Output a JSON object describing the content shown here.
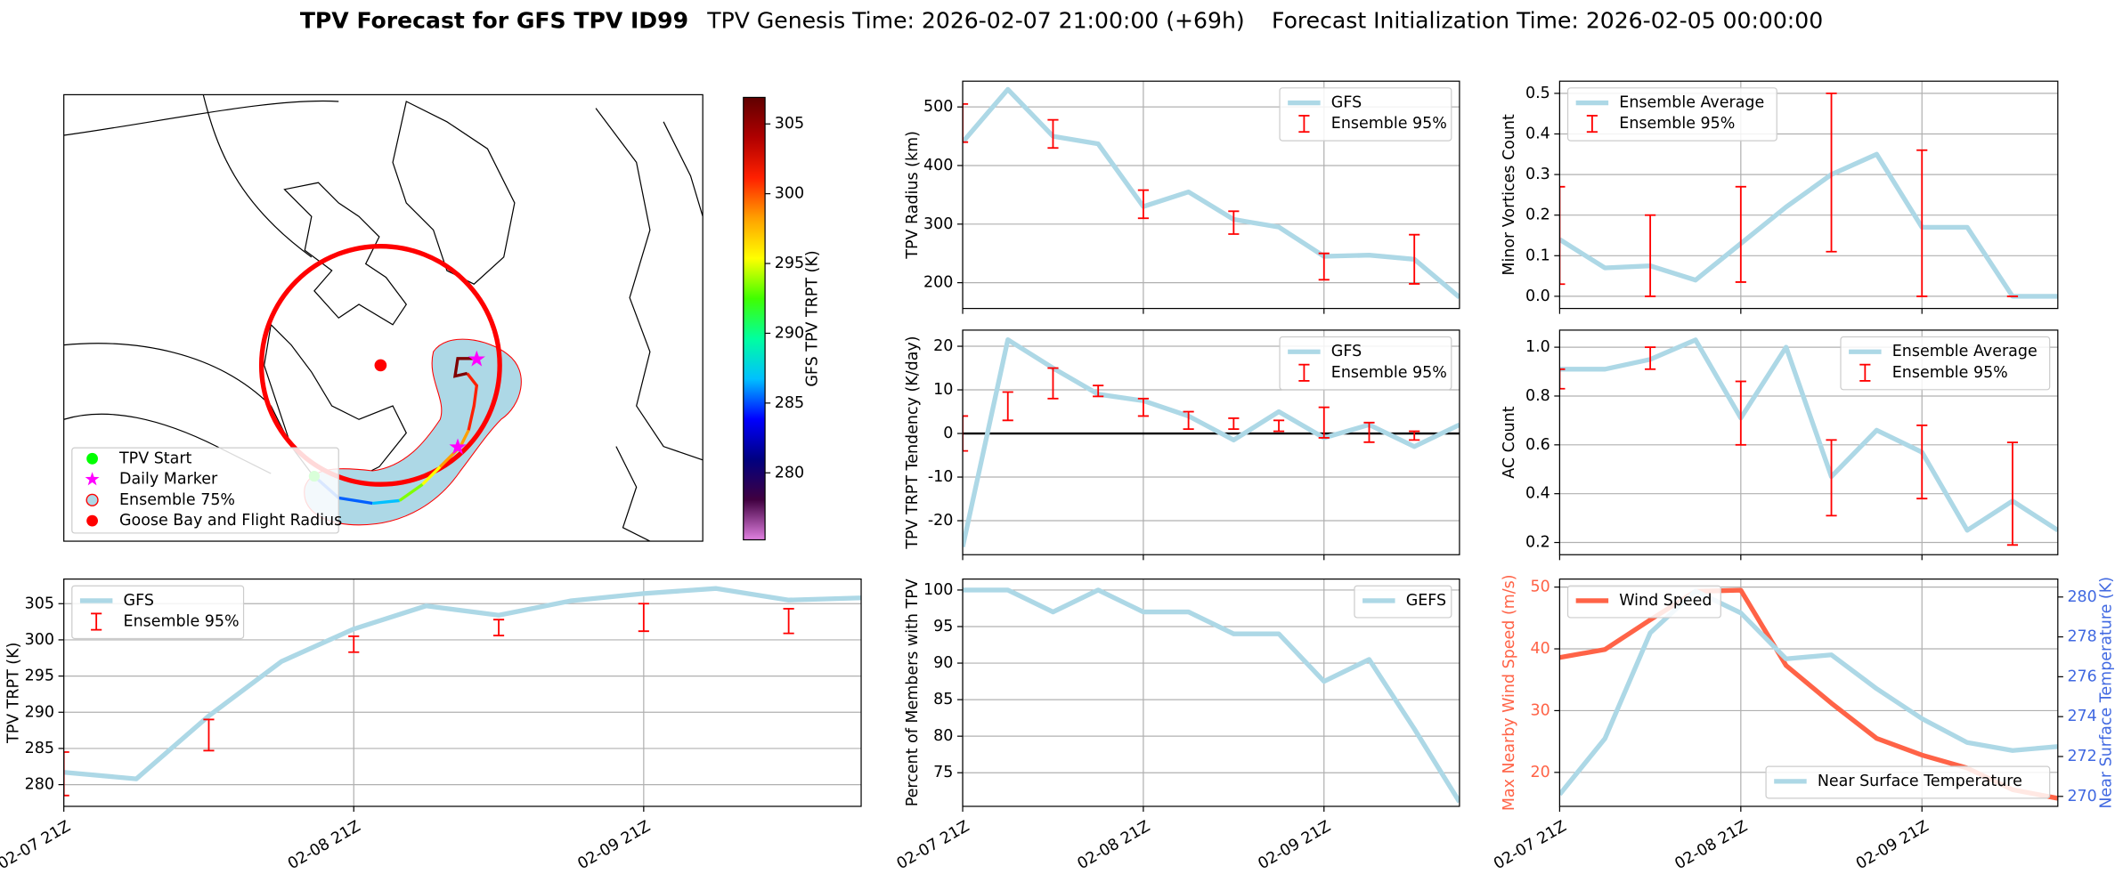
{
  "suptitle": {
    "main": "TPV Forecast for GFS TPV ID99",
    "genesis": "TPV Genesis Time: 2026-02-07 21:00:00 (+69h)",
    "init": "Forecast Initialization Time: 2026-02-05 00:00:00"
  },
  "chart_data": [
    {
      "type": "map",
      "colorbar": {
        "label": "GFS TPV TRPT (K)",
        "clim": [
          275.2,
          306.9
        ],
        "ticks": [
          280,
          285,
          290,
          295,
          300,
          305
        ],
        "colormap": [
          "#e080e0",
          "#400040",
          "#000080",
          "#0000ff",
          "#00c0ff",
          "#00ffa0",
          "#40ff00",
          "#ffff00",
          "#ffa000",
          "#ff2000",
          "#b00000",
          "#600000"
        ]
      },
      "legend": [
        {
          "label": "TPV Start",
          "color": "#00ff00",
          "marker": "circle"
        },
        {
          "label": "Daily Marker",
          "color": "#ff00ff",
          "marker": "star"
        },
        {
          "label": "Ensemble 75%",
          "color": "#add8e6",
          "edge": "#ff0000",
          "marker": "circle"
        },
        {
          "label": "Goose Bay and Flight Radius",
          "color": "#ff0000",
          "marker": "circle"
        }
      ]
    },
    {
      "type": "line",
      "ylabel": "TPV Radius (km)",
      "xlim": [
        0,
        66
      ],
      "xticks": [
        0,
        24,
        48
      ],
      "ylim": [
        156,
        544
      ],
      "yticks": [
        200,
        300,
        400,
        500
      ],
      "grid": true,
      "legend": "upper right",
      "x": [
        0,
        6,
        12,
        18,
        24,
        30,
        36,
        42,
        48,
        54,
        60,
        66
      ],
      "series": [
        {
          "name": "GFS",
          "color": "#add8e6",
          "values": [
            440,
            530,
            450,
            437,
            330,
            355,
            308,
            295,
            245,
            247,
            240,
            175
          ]
        },
        {
          "name": "Ensemble 95%",
          "type": "errorbar",
          "color": "#ff0000",
          "x": [
            0,
            12,
            24,
            36,
            48,
            60
          ],
          "low": [
            440,
            430,
            310,
            283,
            205,
            198
          ],
          "high": [
            505,
            478,
            358,
            322,
            250,
            282
          ]
        }
      ]
    },
    {
      "type": "line",
      "ylabel": "TPV TRPT Tendency (K/day)",
      "xlim": [
        0,
        66
      ],
      "xticks": [
        0,
        24,
        48
      ],
      "ylim": [
        -27.8,
        23.7
      ],
      "yticks": [
        -20,
        -10,
        0,
        10,
        20
      ],
      "grid": true,
      "legend": "upper right",
      "hline": {
        "value": 0,
        "color": "#000000"
      },
      "x": [
        0,
        6,
        12,
        18,
        24,
        30,
        36,
        42,
        48,
        54,
        60,
        66
      ],
      "series": [
        {
          "name": "GFS",
          "color": "#add8e6",
          "values": [
            -26,
            21.5,
            15,
            9,
            7.5,
            4,
            -1.5,
            5,
            -1,
            2,
            -3,
            2
          ]
        },
        {
          "name": "Ensemble 95%",
          "type": "errorbar",
          "color": "#ff0000",
          "x": [
            0,
            6,
            12,
            18,
            24,
            30,
            36,
            42,
            48,
            54,
            60
          ],
          "low": [
            -4,
            3,
            8,
            8.5,
            4,
            1,
            1,
            0.5,
            -1,
            -2,
            -1.5
          ],
          "high": [
            4,
            9.5,
            15,
            11,
            8,
            5,
            3.5,
            3,
            6,
            2.5,
            0.5
          ]
        }
      ]
    },
    {
      "type": "line",
      "ylabel": "Percent of Members with TPV",
      "xlim": [
        0,
        66
      ],
      "xticks": [
        {
          "value": 0,
          "label": "02-07 21Z"
        },
        {
          "value": 24,
          "label": "02-08 21Z"
        },
        {
          "value": 48,
          "label": "02-09 21Z"
        }
      ],
      "ylim": [
        70.4,
        101.5
      ],
      "yticks": [
        75,
        80,
        85,
        90,
        95,
        100
      ],
      "grid": true,
      "legend": "upper right",
      "x": [
        0,
        6,
        12,
        18,
        24,
        30,
        36,
        42,
        48,
        54,
        60,
        66
      ],
      "series": [
        {
          "name": "GEFS",
          "color": "#add8e6",
          "values": [
            100,
            100,
            97,
            100,
            97,
            97,
            94,
            94,
            87.5,
            90.5,
            81,
            71
          ]
        }
      ]
    },
    {
      "type": "line",
      "ylabel": "Minor Vortices Count",
      "xlim": [
        0,
        66
      ],
      "xticks": [
        0,
        24,
        48
      ],
      "ylim": [
        -0.03,
        0.53
      ],
      "yticks": [
        {
          "value": 0,
          "label": "0.0"
        },
        0.1,
        0.2,
        0.3,
        0.4,
        0.5
      ],
      "grid": true,
      "legend": "upper left",
      "x": [
        0,
        6,
        12,
        18,
        24,
        30,
        36,
        42,
        48,
        54,
        60,
        66
      ],
      "series": [
        {
          "name": "Ensemble Average",
          "color": "#add8e6",
          "values": [
            0.14,
            0.07,
            0.075,
            0.04,
            0.13,
            0.22,
            0.3,
            0.35,
            0.17,
            0.17,
            0,
            0
          ]
        },
        {
          "name": "Ensemble 95%",
          "type": "errorbar",
          "color": "#ff0000",
          "x": [
            0,
            12,
            24,
            36,
            48,
            60
          ],
          "low": [
            0.03,
            0,
            0.035,
            0.11,
            0,
            0
          ],
          "high": [
            0.27,
            0.2,
            0.27,
            0.5,
            0.36,
            0
          ]
        }
      ]
    },
    {
      "type": "line",
      "ylabel": "AC Count",
      "xlim": [
        0,
        66
      ],
      "xticks": [
        0,
        24,
        48
      ],
      "ylim": [
        0.15,
        1.07
      ],
      "yticks": [
        0.2,
        0.4,
        0.6,
        0.8,
        {
          "value": 1,
          "label": "1.0"
        }
      ],
      "grid": true,
      "legend": "upper right",
      "x": [
        0,
        6,
        12,
        18,
        24,
        30,
        36,
        42,
        48,
        54,
        60,
        66
      ],
      "series": [
        {
          "name": "Ensemble Average",
          "color": "#add8e6",
          "values": [
            0.91,
            0.91,
            0.95,
            1.03,
            0.71,
            1.0,
            0.47,
            0.66,
            0.57,
            0.25,
            0.37,
            0.25
          ]
        },
        {
          "name": "Ensemble 95%",
          "type": "errorbar",
          "color": "#ff0000",
          "x": [
            0,
            12,
            24,
            36,
            48,
            60
          ],
          "low": [
            0.83,
            0.91,
            0.6,
            0.31,
            0.38,
            0.19
          ],
          "high": [
            0.91,
            1.0,
            0.86,
            0.62,
            0.68,
            0.61
          ]
        }
      ]
    },
    {
      "type": "line",
      "ylabel": "Max Nearby Wind Speed (m/s)",
      "ylabel_color": "#ff6347",
      "y2label": "Near Surface Temperature (K)",
      "y2label_color": "#4169e1",
      "xlim": [
        0,
        66
      ],
      "xticks": [
        {
          "value": 0,
          "label": "02-07 21Z"
        },
        {
          "value": 24,
          "label": "02-08 21Z"
        },
        {
          "value": 48,
          "label": "02-09 21Z"
        }
      ],
      "ylim": [
        14.5,
        51.3
      ],
      "yticks": [
        20,
        30,
        40,
        50
      ],
      "ytick_color": "#ff6347",
      "y2lim": [
        269.5,
        280.9
      ],
      "y2ticks": [
        270,
        272,
        274,
        276,
        278,
        280
      ],
      "y2tick_color": "#4169e1",
      "grid": true,
      "legend": "upper left",
      "legend2": "lower right",
      "x": [
        0,
        6,
        12,
        18,
        24,
        30,
        36,
        42,
        48,
        54,
        60,
        66
      ],
      "series": [
        {
          "name": "Wind Speed",
          "color": "#ff6347",
          "values": [
            38.6,
            39.9,
            44.7,
            49.3,
            49.5,
            37.3,
            31.2,
            25.5,
            22.8,
            20.7,
            17.2,
            15.8
          ]
        },
        {
          "name": "Near Surface Temperature",
          "color": "#add8e6",
          "axis": "y2",
          "values": [
            270.1,
            272.9,
            278.2,
            280.3,
            279.2,
            276.9,
            277.1,
            275.4,
            273.9,
            272.7,
            272.3,
            272.5
          ]
        }
      ]
    },
    {
      "type": "line",
      "ylabel": "TPV TRPT (K)",
      "xlim": [
        0,
        66
      ],
      "xticks": [
        {
          "value": 0,
          "label": "02-07 21Z"
        },
        {
          "value": 24,
          "label": "02-08 21Z"
        },
        {
          "value": 48,
          "label": "02-09 21Z"
        }
      ],
      "ylim": [
        277,
        308.4
      ],
      "yticks": [
        280,
        285,
        290,
        295,
        300,
        305
      ],
      "grid": true,
      "legend": "upper left",
      "x": [
        0,
        6,
        12,
        18,
        24,
        30,
        36,
        42,
        48,
        54,
        60,
        66
      ],
      "series": [
        {
          "name": "GFS",
          "color": "#add8e6",
          "values": [
            281.7,
            280.8,
            289.5,
            297,
            301.5,
            304.7,
            303.4,
            305.4,
            306.4,
            307.1,
            305.5,
            305.8
          ]
        },
        {
          "name": "Ensemble 95%",
          "type": "errorbar",
          "color": "#ff0000",
          "x": [
            0,
            12,
            24,
            36,
            48,
            60
          ],
          "low": [
            278.5,
            284.7,
            298.3,
            300.6,
            301.2,
            300.9
          ],
          "high": [
            284.5,
            289,
            300.5,
            302.8,
            305,
            304.3
          ]
        }
      ]
    }
  ]
}
